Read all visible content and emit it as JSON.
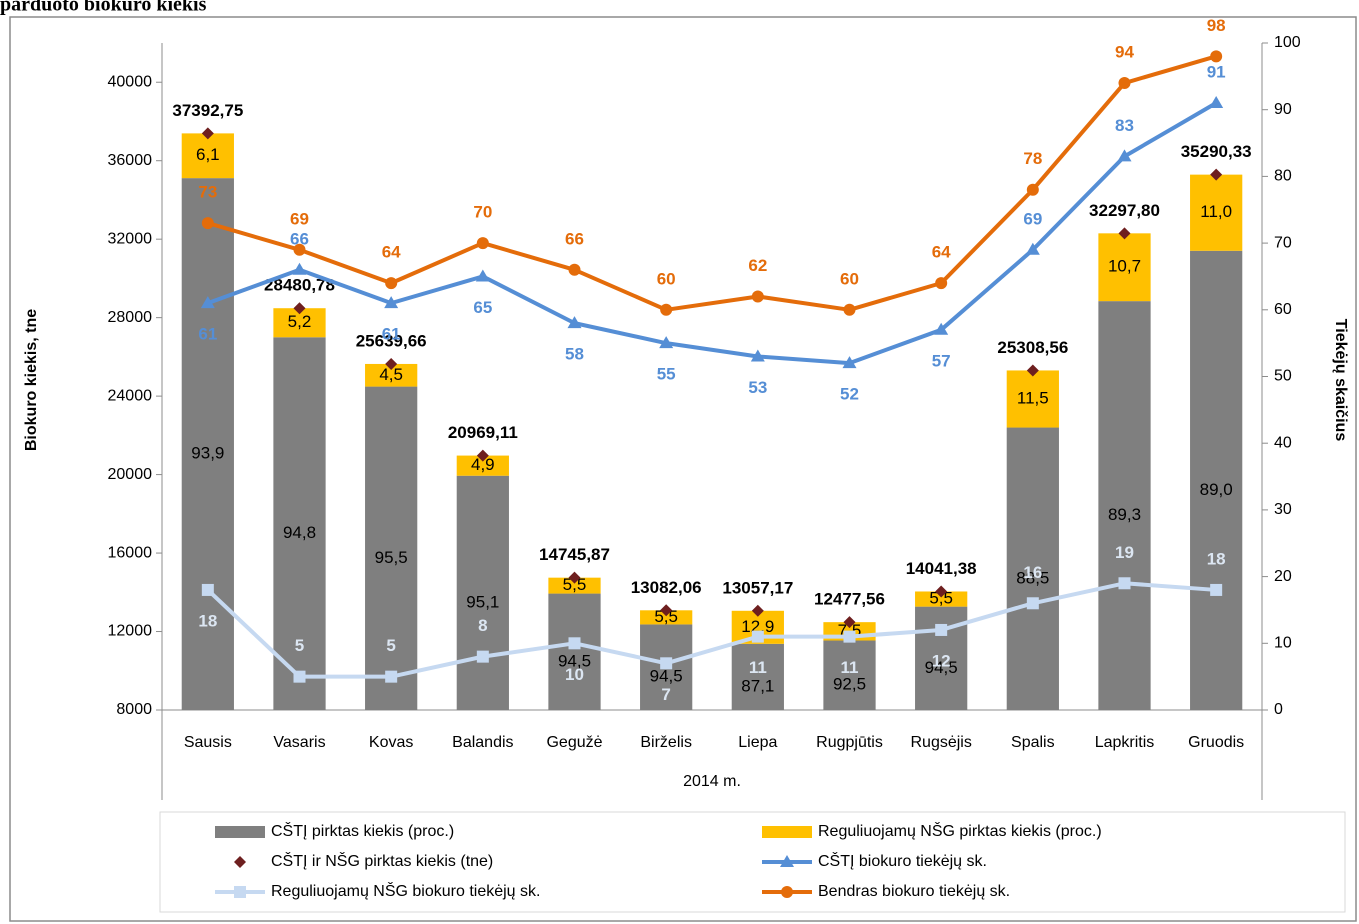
{
  "chart_data": {
    "type": "bar",
    "title": "parduoto biokuro kiekis",
    "categories": [
      "Sausis",
      "Vasaris",
      "Kovas",
      "Balandis",
      "Gegužė",
      "Birželis",
      "Liepa",
      "Rugpjūtis",
      "Rugsėjis",
      "Spalis",
      "Lapkritis",
      "Gruodis"
    ],
    "x_group_label": "2014 m.",
    "ylabel": "Biokuro kiekis, tne",
    "y2label": "Tiekėjų skaičius",
    "ylim": [
      8000,
      42000
    ],
    "yticks": [
      8000,
      12000,
      16000,
      20000,
      24000,
      28000,
      32000,
      36000,
      40000
    ],
    "y2lim": [
      0,
      100
    ],
    "y2ticks": [
      0,
      10,
      20,
      30,
      40,
      50,
      60,
      70,
      80,
      90,
      100
    ],
    "series": [
      {
        "name": "CŠTĮ pirktas kiekis (proc.)",
        "type": "bar",
        "color": "#7f7f7f",
        "values": [
          93.9,
          94.8,
          95.5,
          95.1,
          94.5,
          94.5,
          87.1,
          92.5,
          94.5,
          88.5,
          89.3,
          89.0
        ],
        "value_labels": [
          "93,9",
          "94,8",
          "95,5",
          "95,1",
          "94,5",
          "94,5",
          "87,1",
          "92,5",
          "94,5",
          "88,5",
          "89,3",
          "89,0"
        ]
      },
      {
        "name": "Reguliuojamų NŠG pirktas kiekis (proc.)",
        "type": "bar",
        "color": "#ffc000",
        "values": [
          6.1,
          5.2,
          4.5,
          4.9,
          5.5,
          5.5,
          12.9,
          7.5,
          5.5,
          11.5,
          10.7,
          11.0
        ],
        "value_labels": [
          "6,1",
          "5,2",
          "4,5",
          "4,9",
          "5,5",
          "5,5",
          "12,9",
          "7,5",
          "5,5",
          "11,5",
          "10,7",
          "11,0"
        ]
      },
      {
        "name": "CŠTĮ ir NŠG pirktas kiekis (tne)",
        "type": "scatter",
        "color": "#6e1f1f",
        "values": [
          37392.75,
          28480.78,
          25639.66,
          20969.11,
          14745.87,
          13082.06,
          13057.17,
          12477.56,
          14041.38,
          25308.56,
          32297.8,
          35290.33
        ],
        "value_labels": [
          "37392,75",
          "28480,78",
          "25639,66",
          "20969,11",
          "14745,87",
          "13082,06",
          "13057,17",
          "12477,56",
          "14041,38",
          "25308,56",
          "32297,80",
          "35290,33"
        ]
      },
      {
        "name": "CŠTĮ biokuro tiekėjų sk.",
        "type": "line",
        "axis": "y2",
        "marker": "triangle",
        "color": "#558ed5",
        "values": [
          61,
          66,
          61,
          65,
          58,
          55,
          53,
          52,
          57,
          69,
          83,
          91
        ]
      },
      {
        "name": "Reguliuojamų NŠG biokuro tiekėjų sk.",
        "type": "line",
        "axis": "y2",
        "marker": "square",
        "color": "#c6d9f1",
        "values": [
          18,
          5,
          5,
          8,
          10,
          7,
          11,
          11,
          12,
          16,
          19,
          18
        ]
      },
      {
        "name": "Bendras biokuro tiekėjų sk.",
        "type": "line",
        "axis": "y2",
        "marker": "circle",
        "color": "#e46c0a",
        "values": [
          73,
          69,
          64,
          70,
          66,
          60,
          62,
          60,
          64,
          78,
          94,
          98
        ]
      }
    ]
  }
}
